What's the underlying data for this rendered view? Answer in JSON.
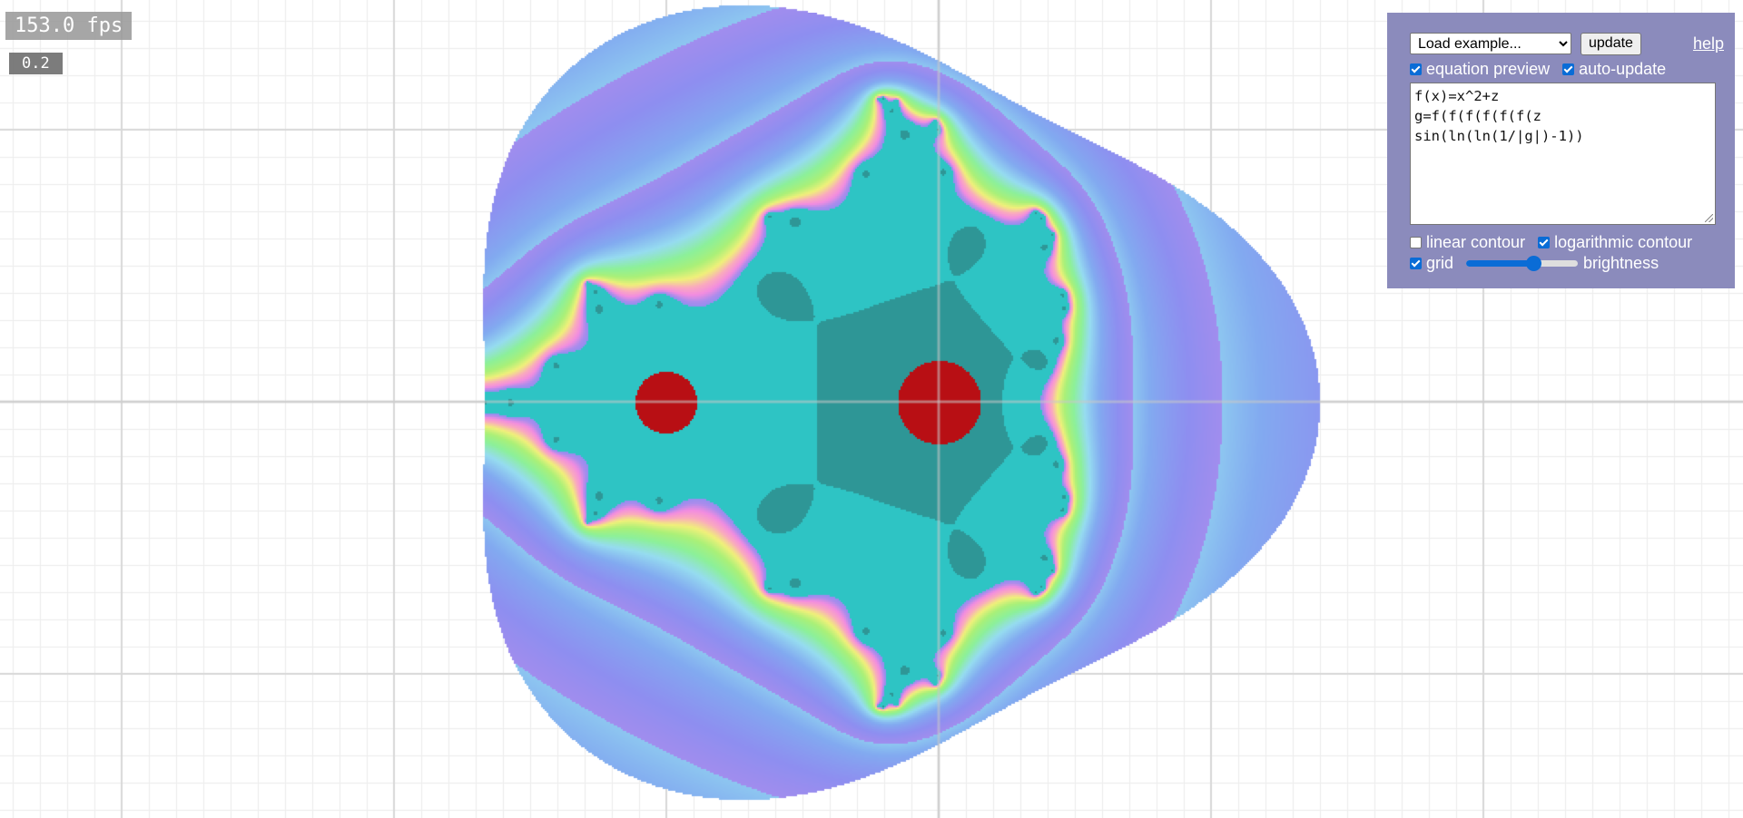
{
  "overlay": {
    "fps_text": "153.0 fps",
    "scale_text": "0.2"
  },
  "controls": {
    "example_select": {
      "selected": "Load example..."
    },
    "update_label": "update",
    "help_label": "help",
    "equation_preview": {
      "label": "equation preview",
      "checked": true
    },
    "auto_update": {
      "label": "auto-update",
      "checked": true
    },
    "equation_lines": [
      "f(x)=x^2+z",
      "g=f(f(f(f(f(f(z",
      "sin(ln(ln(1/|g|)-1))"
    ],
    "linear_contour": {
      "label": "linear contour",
      "checked": false
    },
    "log_contour": {
      "label": "logarithmic contour",
      "checked": true
    },
    "grid": {
      "label": "grid",
      "checked": true
    },
    "brightness": {
      "label": "brightness",
      "value": 0.6
    }
  },
  "colors": {
    "panel_bg": "#8b8bbc",
    "accent": "#0a6cd6",
    "fractal_outer": "#8e8ef0",
    "fractal_interior": "#2ec4c4",
    "fractal_core": "#b80f14",
    "fractal_ring_yellow": "#f0f07a",
    "fractal_ring_green": "#8cf09a",
    "fractal_ring_pink": "#f28ce0"
  }
}
